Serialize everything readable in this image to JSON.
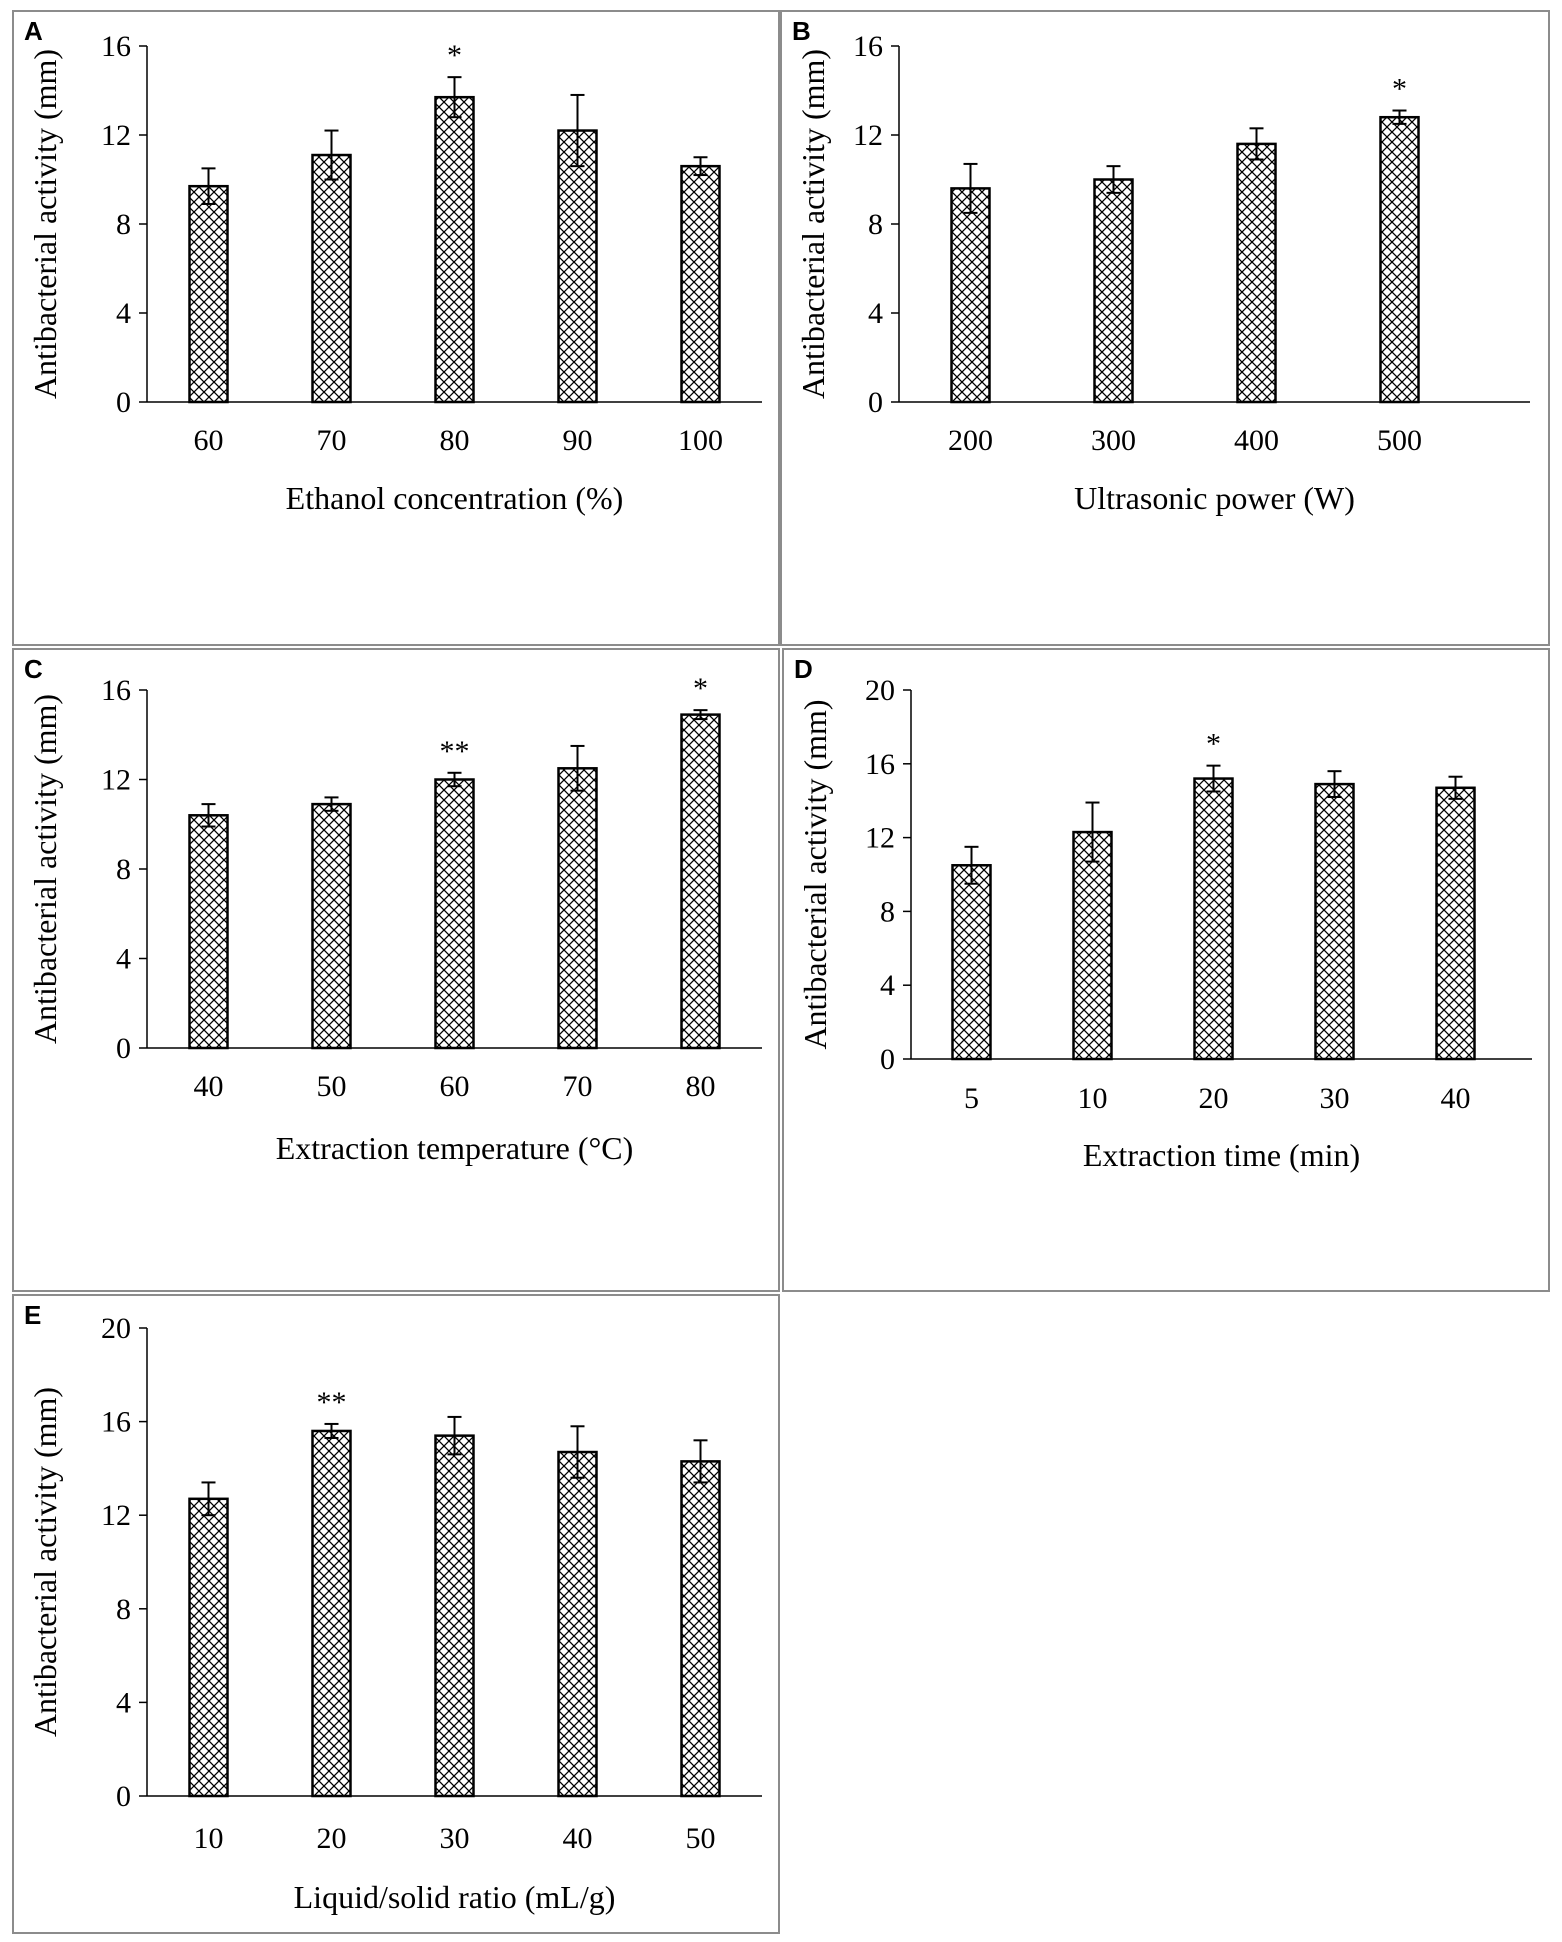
{
  "figure": {
    "colors": {
      "bar_stroke": "#000000",
      "hatch": "#000000",
      "background": "#ffffff",
      "frame": "#8c8c8c"
    }
  },
  "chart_data": [
    {
      "panel": "A",
      "type": "bar",
      "categories": [
        "60",
        "70",
        "80",
        "90",
        "100"
      ],
      "values": [
        9.7,
        11.1,
        13.7,
        12.2,
        10.6
      ],
      "errors": [
        0.8,
        1.1,
        0.9,
        1.6,
        0.4
      ],
      "significance": [
        "",
        "",
        "*",
        "",
        ""
      ],
      "title": "",
      "xlabel": "Ethanol concentration (%)",
      "ylabel": "Antibacterial activity (mm)",
      "ylim": [
        0,
        16
      ],
      "yticks": [
        "0",
        "4",
        "8",
        "12",
        "16"
      ]
    },
    {
      "panel": "B",
      "type": "bar",
      "categories": [
        "200",
        "300",
        "400",
        "500"
      ],
      "values": [
        9.6,
        10.0,
        11.6,
        12.8
      ],
      "errors": [
        1.1,
        0.6,
        0.7,
        0.3
      ],
      "significance": [
        "",
        "",
        "",
        "*"
      ],
      "title": "",
      "xlabel": "Ultrasonic power (W)",
      "ylabel": "Antibacterial activity (mm)",
      "ylim": [
        0,
        16
      ],
      "yticks": [
        "0",
        "4",
        "8",
        "12",
        "16"
      ]
    },
    {
      "panel": "C",
      "type": "bar",
      "categories": [
        "40",
        "50",
        "60",
        "70",
        "80"
      ],
      "values": [
        10.4,
        10.9,
        12.0,
        12.5,
        14.9
      ],
      "errors": [
        0.5,
        0.3,
        0.3,
        1.0,
        0.2
      ],
      "significance": [
        "",
        "",
        "**",
        "",
        "*"
      ],
      "title": "",
      "xlabel": "Extraction temperature (°C)",
      "ylabel": "Antibacterial activity (mm)",
      "ylim": [
        0,
        16
      ],
      "yticks": [
        "0",
        "4",
        "8",
        "12",
        "16"
      ]
    },
    {
      "panel": "D",
      "type": "bar",
      "categories": [
        "5",
        "10",
        "20",
        "30",
        "40"
      ],
      "values": [
        10.5,
        12.3,
        15.2,
        14.9,
        14.7
      ],
      "errors": [
        1.0,
        1.6,
        0.7,
        0.7,
        0.6
      ],
      "significance": [
        "",
        "",
        "*",
        "",
        ""
      ],
      "title": "",
      "xlabel": "Extraction time (min)",
      "ylabel": "Antibacterial activity (mm)",
      "ylim": [
        0,
        20
      ],
      "yticks": [
        "0",
        "4",
        "8",
        "12",
        "16",
        "20"
      ]
    },
    {
      "panel": "E",
      "type": "bar",
      "categories": [
        "10",
        "20",
        "30",
        "40",
        "50"
      ],
      "values": [
        12.7,
        15.6,
        15.4,
        14.7,
        14.3
      ],
      "errors": [
        0.7,
        0.3,
        0.8,
        1.1,
        0.9
      ],
      "significance": [
        "",
        "**",
        "",
        "",
        ""
      ],
      "title": "",
      "xlabel": "Liquid/solid ratio (mL/g)",
      "ylabel": "Antibacterial activity (mm)",
      "ylim": [
        0,
        20
      ],
      "yticks": [
        "0",
        "4",
        "8",
        "12",
        "16",
        "20"
      ]
    }
  ]
}
